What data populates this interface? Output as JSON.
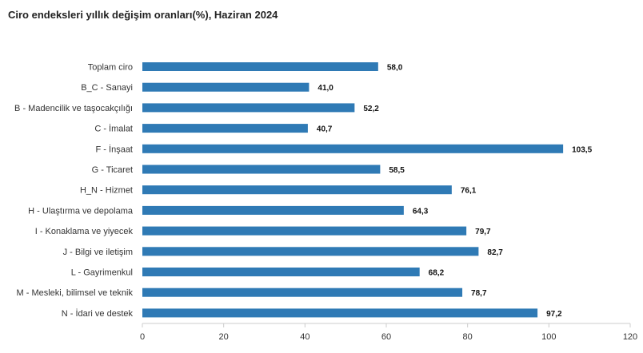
{
  "chart_data": {
    "type": "bar",
    "orientation": "horizontal",
    "title": "Ciro endeksleri yıllık değişim oranları(%), Haziran 2024",
    "categories": [
      "Toplam ciro",
      "B_C - Sanayi",
      "B - Madencilik ve taşocakçılığı",
      "C - İmalat",
      "F - İnşaat",
      "G - Ticaret",
      "H_N - Hizmet",
      "H - Ulaştırma ve depolama",
      "I - Konaklama ve yiyecek",
      "J - Bilgi ve iletişim",
      "L - Gayrimenkul",
      "M - Mesleki, bilimsel ve teknik",
      "N - İdari ve destek"
    ],
    "values": [
      58.0,
      41.0,
      52.2,
      40.7,
      103.5,
      58.5,
      76.1,
      64.3,
      79.7,
      82.7,
      68.2,
      78.7,
      97.2
    ],
    "value_labels": [
      "58,0",
      "41,0",
      "52,2",
      "40,7",
      "103,5",
      "58,5",
      "76,1",
      "64,3",
      "79,7",
      "82,7",
      "68,2",
      "78,7",
      "97,2"
    ],
    "xlim": [
      0,
      120
    ],
    "xticks": [
      "0",
      "20",
      "40",
      "60",
      "80",
      "100",
      "120"
    ],
    "xlabel": "",
    "ylabel": "",
    "grid": false,
    "bar_color": "#2f7ab5"
  }
}
